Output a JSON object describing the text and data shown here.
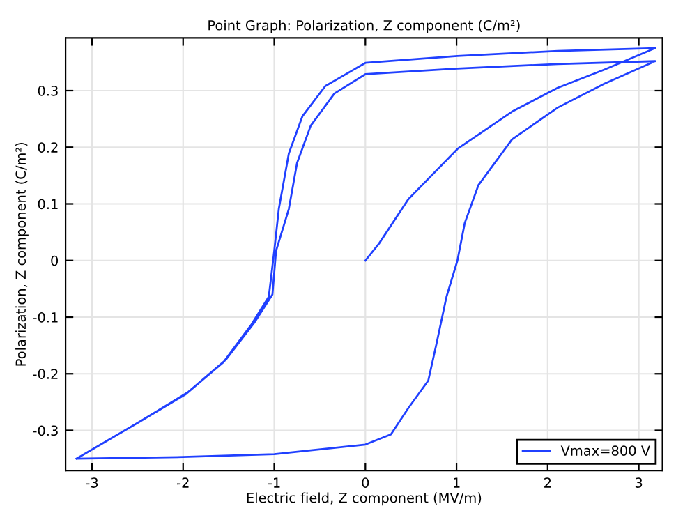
{
  "chart_data": {
    "type": "line",
    "title": "Point Graph: Polarization, Z component (C/m²)",
    "xlabel": "Electric field, Z component (MV/m)",
    "ylabel": "Polarization, Z component (C/m²)",
    "xlim": [
      -3.29,
      3.26
    ],
    "ylim": [
      -0.371,
      0.393
    ],
    "xticks": [
      -3,
      -2,
      -1,
      0,
      1,
      2,
      3
    ],
    "yticks": [
      -0.3,
      -0.2,
      -0.1,
      0,
      0.1,
      0.2,
      0.3
    ],
    "grid": true,
    "legend": "bottom right",
    "marker": "none",
    "line_style": "solid",
    "series": [
      {
        "name": "Vmax=800 V",
        "color": "#2040ff",
        "x": [
          0,
          0.15,
          0.47,
          1.01,
          1.61,
          2.11,
          2.62,
          3.18,
          2.11,
          1.01,
          0,
          -0.44,
          -0.69,
          -0.84,
          -0.95,
          -1.0,
          -1.06,
          -1.25,
          -1.56,
          -1.97,
          -2.48,
          -3.17,
          -2.0,
          -1.0,
          0,
          0.28,
          0.47,
          0.69,
          0.78,
          0.89,
          1.01,
          1.09,
          1.24,
          1.61,
          2.11,
          2.62,
          3.18,
          2.11,
          1.01,
          0,
          -0.34,
          -0.6,
          -0.75,
          -0.84,
          -0.98,
          -1.02,
          -1.22,
          -1.53,
          -1.95,
          -2.46,
          -3.17
        ],
        "values": [
          0,
          0.03,
          0.108,
          0.197,
          0.263,
          0.305,
          0.337,
          0.375,
          0.37,
          0.361,
          0.349,
          0.308,
          0.255,
          0.189,
          0.091,
          0.017,
          -0.064,
          -0.113,
          -0.18,
          -0.236,
          -0.285,
          -0.35,
          -0.347,
          -0.342,
          -0.325,
          -0.307,
          -0.261,
          -0.212,
          -0.147,
          -0.064,
          0,
          0.066,
          0.133,
          0.214,
          0.27,
          0.312,
          0.352,
          0.347,
          0.339,
          0.329,
          0.295,
          0.238,
          0.172,
          0.091,
          0.017,
          -0.06,
          -0.11,
          -0.175,
          -0.233,
          -0.283,
          -0.35
        ]
      }
    ]
  }
}
